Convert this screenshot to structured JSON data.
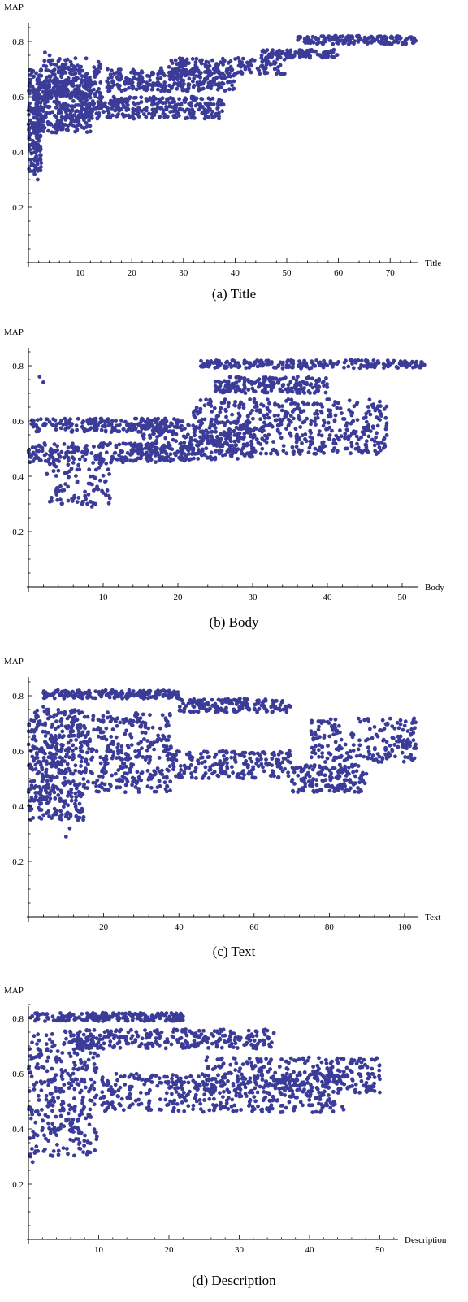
{
  "figure": {
    "point_color": "#3b3b98",
    "axis_color": "#000000"
  },
  "chart_data": [
    {
      "type": "scatter",
      "caption": "(a) Title",
      "xlabel": "Title",
      "ylabel": "MAP",
      "xlim": [
        0,
        76
      ],
      "ylim": [
        0,
        0.85
      ],
      "xticks": [
        10,
        20,
        30,
        40,
        50,
        60,
        70
      ],
      "yticks": [
        0.2,
        0.4,
        0.6,
        0.8
      ],
      "bands": [
        {
          "x": [
            0,
            2.5
          ],
          "y": [
            0.33,
            0.7
          ],
          "n": 170
        },
        {
          "x": [
            1,
            12
          ],
          "y": [
            0.47,
            0.66
          ],
          "n": 320
        },
        {
          "x": [
            3,
            14
          ],
          "y": [
            0.6,
            0.74
          ],
          "n": 180
        },
        {
          "x": [
            10,
            38
          ],
          "y": [
            0.52,
            0.6
          ],
          "n": 320
        },
        {
          "x": [
            15,
            40
          ],
          "y": [
            0.62,
            0.7
          ],
          "n": 280
        },
        {
          "x": [
            25,
            50
          ],
          "y": [
            0.68,
            0.74
          ],
          "n": 160
        },
        {
          "x": [
            45,
            60
          ],
          "y": [
            0.74,
            0.77
          ],
          "n": 100
        },
        {
          "x": [
            52,
            75
          ],
          "y": [
            0.79,
            0.82
          ],
          "n": 160
        }
      ],
      "points": [
        [
          3.2,
          0.76
        ],
        [
          4.1,
          0.75
        ],
        [
          1.2,
          0.32
        ],
        [
          1.8,
          0.3
        ],
        [
          0.6,
          0.36
        ],
        [
          73,
          0.79
        ]
      ]
    },
    {
      "type": "scatter",
      "caption": "(b) Body",
      "xlabel": "Body",
      "ylabel": "MAP",
      "xlim": [
        0,
        52
      ],
      "ylim": [
        0,
        0.85
      ],
      "xticks": [
        10,
        20,
        30,
        40,
        50
      ],
      "yticks": [
        0.2,
        0.4,
        0.6,
        0.8
      ],
      "bands": [
        {
          "x": [
            0,
            20
          ],
          "y": [
            0.56,
            0.61
          ],
          "n": 200
        },
        {
          "x": [
            0,
            22
          ],
          "y": [
            0.45,
            0.52
          ],
          "n": 240
        },
        {
          "x": [
            2,
            11
          ],
          "y": [
            0.3,
            0.45
          ],
          "n": 90
        },
        {
          "x": [
            15,
            30
          ],
          "y": [
            0.46,
            0.6
          ],
          "n": 260
        },
        {
          "x": [
            22,
            48
          ],
          "y": [
            0.48,
            0.68
          ],
          "n": 480
        },
        {
          "x": [
            25,
            40
          ],
          "y": [
            0.7,
            0.76
          ],
          "n": 180
        },
        {
          "x": [
            23,
            54
          ],
          "y": [
            0.79,
            0.82
          ],
          "n": 220
        }
      ],
      "points": [
        [
          1.5,
          0.76
        ],
        [
          2,
          0.74
        ],
        [
          8.5,
          0.29
        ],
        [
          10,
          0.34
        ],
        [
          52,
          0.8
        ],
        [
          47,
          0.67
        ]
      ]
    },
    {
      "type": "scatter",
      "caption": "(c) Text",
      "xlabel": "Text",
      "ylabel": "MAP",
      "xlim": [
        0,
        104
      ],
      "ylim": [
        0,
        0.85
      ],
      "xticks": [
        20,
        40,
        60,
        80,
        100
      ],
      "yticks": [
        0.2,
        0.4,
        0.6,
        0.8
      ],
      "bands": [
        {
          "x": [
            0,
            15
          ],
          "y": [
            0.35,
            0.75
          ],
          "n": 420
        },
        {
          "x": [
            15,
            38
          ],
          "y": [
            0.45,
            0.74
          ],
          "n": 320
        },
        {
          "x": [
            4,
            40
          ],
          "y": [
            0.79,
            0.82
          ],
          "n": 200
        },
        {
          "x": [
            40,
            70
          ],
          "y": [
            0.74,
            0.79
          ],
          "n": 160
        },
        {
          "x": [
            38,
            70
          ],
          "y": [
            0.5,
            0.6
          ],
          "n": 200
        },
        {
          "x": [
            70,
            90
          ],
          "y": [
            0.45,
            0.55
          ],
          "n": 160
        },
        {
          "x": [
            75,
            103
          ],
          "y": [
            0.56,
            0.72
          ],
          "n": 200
        }
      ],
      "points": [
        [
          10,
          0.29
        ],
        [
          11,
          0.32
        ],
        [
          103,
          0.61
        ],
        [
          4,
          0.76
        ]
      ]
    },
    {
      "type": "scatter",
      "caption": "(d) Description",
      "xlabel": "Description",
      "ylabel": "MAP",
      "xlim": [
        0,
        53
      ],
      "ylim": [
        0,
        0.85
      ],
      "xticks": [
        10,
        20,
        30,
        40,
        50
      ],
      "yticks": [
        0.2,
        0.4,
        0.6,
        0.8
      ],
      "bands": [
        {
          "x": [
            0,
            22
          ],
          "y": [
            0.79,
            0.82
          ],
          "n": 200
        },
        {
          "x": [
            0,
            10
          ],
          "y": [
            0.3,
            0.75
          ],
          "n": 320
        },
        {
          "x": [
            5,
            35
          ],
          "y": [
            0.69,
            0.76
          ],
          "n": 280
        },
        {
          "x": [
            10,
            45
          ],
          "y": [
            0.46,
            0.6
          ],
          "n": 420
        },
        {
          "x": [
            25,
            50
          ],
          "y": [
            0.53,
            0.66
          ],
          "n": 280
        }
      ],
      "points": [
        [
          0.3,
          0.3
        ],
        [
          0.6,
          0.28
        ],
        [
          50,
          0.58
        ],
        [
          46,
          0.65
        ]
      ]
    }
  ]
}
